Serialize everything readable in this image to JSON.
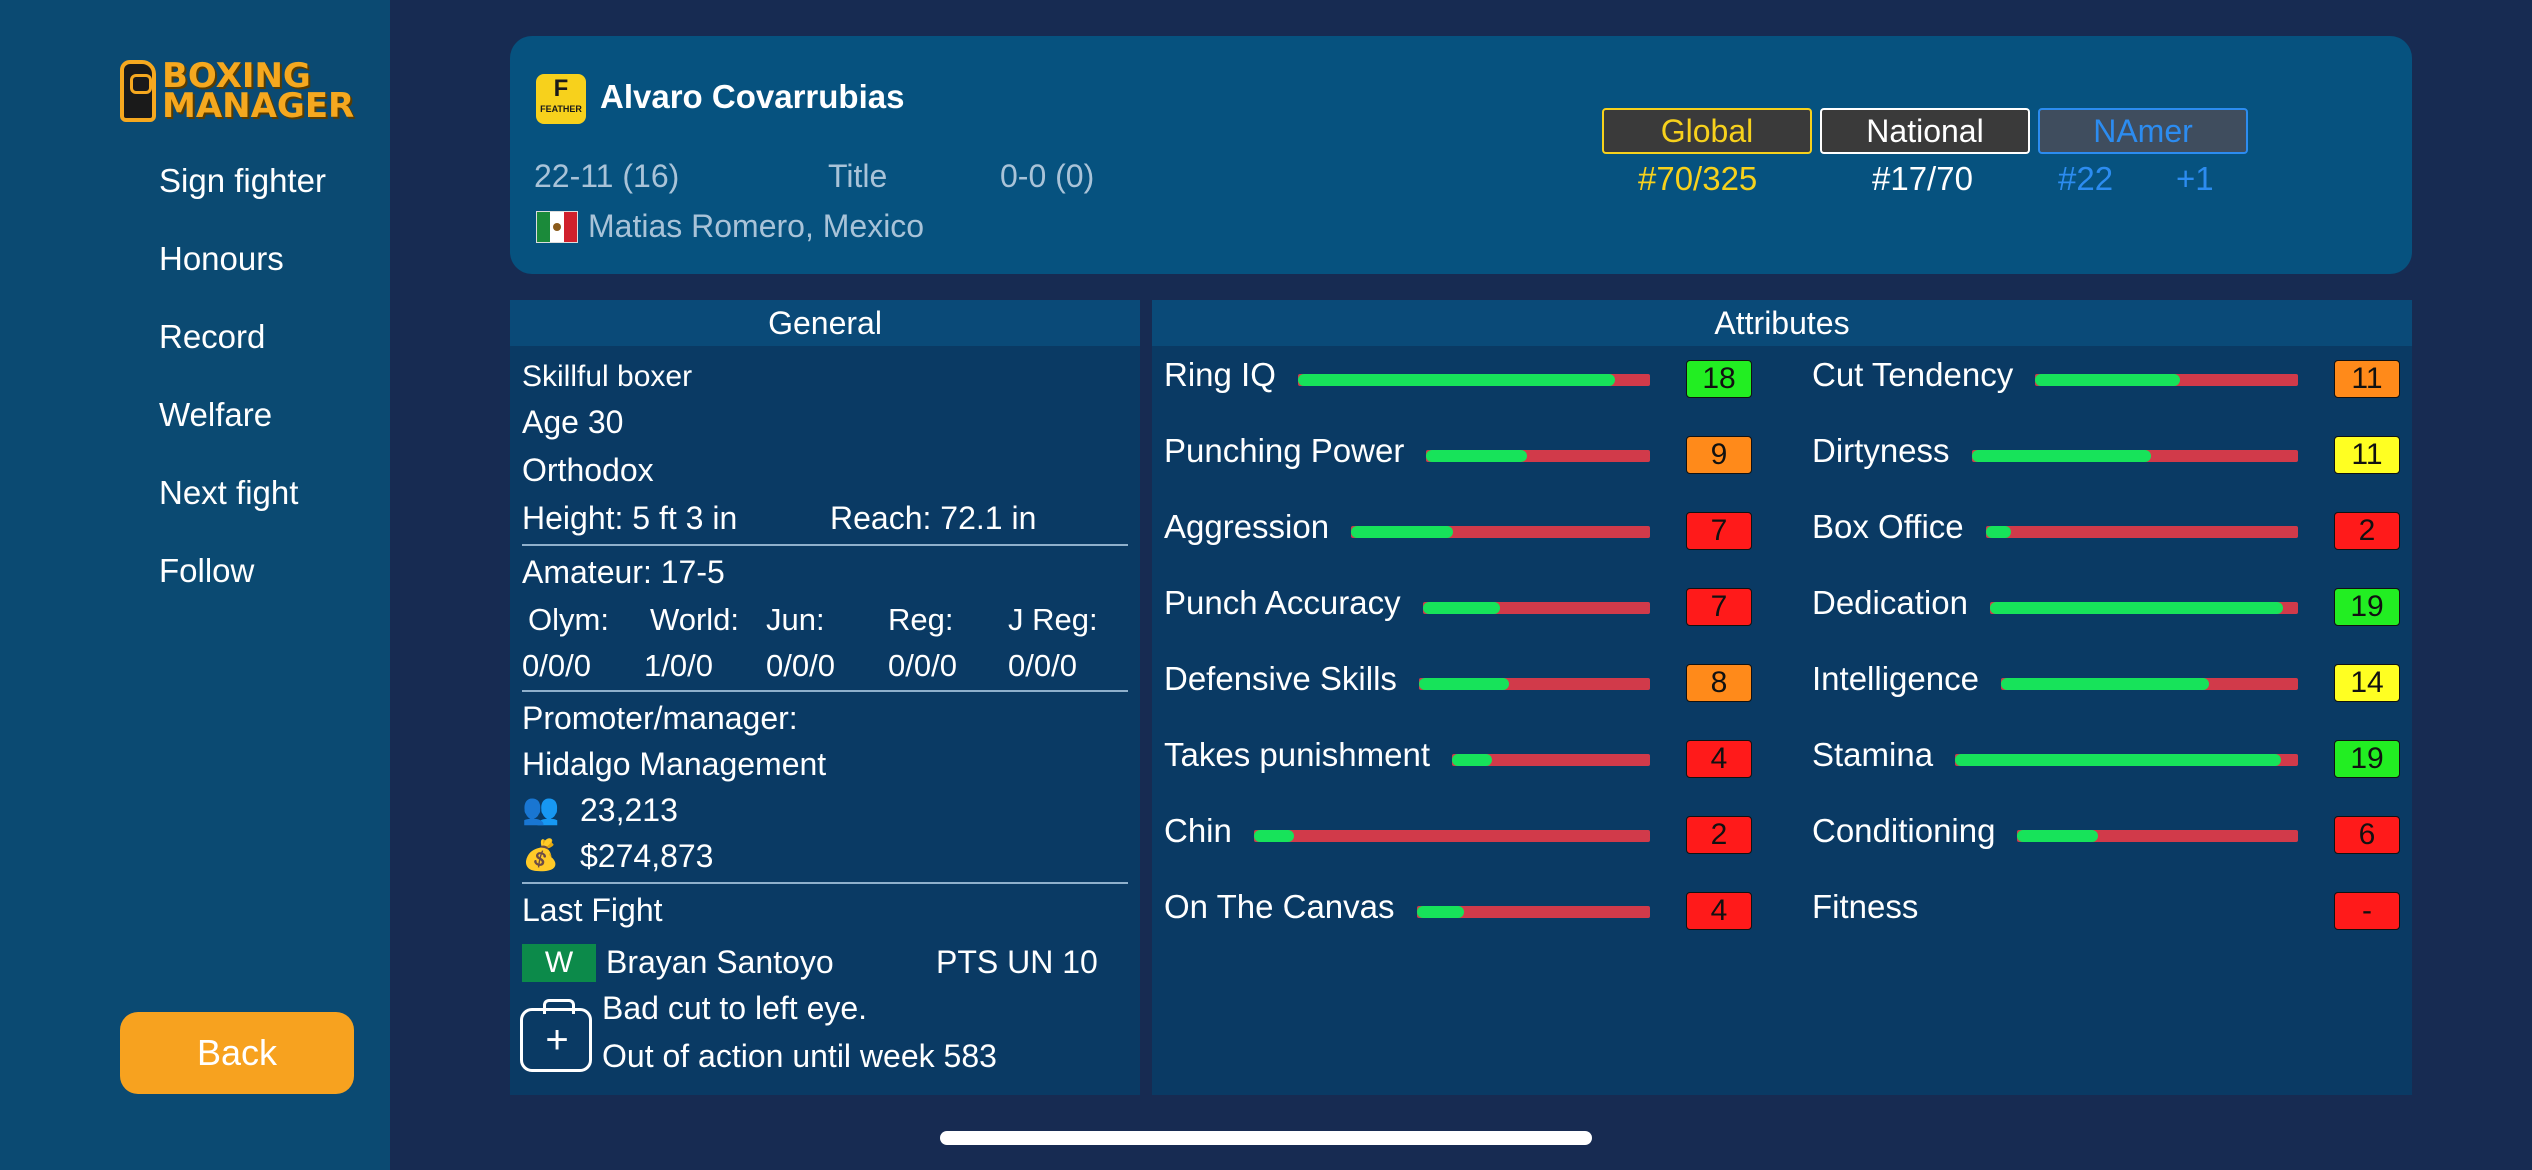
{
  "sidebar": {
    "logo_line1": "BOXING",
    "logo_line2": "MANAGER",
    "items": [
      "Sign fighter",
      "Honours",
      "Record",
      "Welfare",
      "Next fight",
      "Follow"
    ],
    "back_label": "Back"
  },
  "header": {
    "weight_letter": "F",
    "weight_class": "FEATHER",
    "name": "Alvaro Covarrubias",
    "record": "22-11 (16)",
    "title_label": "Title",
    "title_record": "0-0 (0)",
    "trainer_location": "Matias Romero, Mexico",
    "rank_tabs": [
      {
        "label": "Global",
        "color": "#f7d11c"
      },
      {
        "label": "National",
        "color": "#ffffff"
      },
      {
        "label": "NAmer",
        "color": "#2c8cf0"
      }
    ],
    "rank_values": {
      "global": "#70/325",
      "national": "#17/70",
      "namer": "#22",
      "namer_change": "+1"
    }
  },
  "general": {
    "title": "General",
    "style": "Skillful boxer",
    "age": "Age 30",
    "stance": "Orthodox",
    "height": "Height: 5 ft 3 in",
    "reach": "Reach: 72.1 in",
    "amateur": "Amateur: 17-5",
    "amateur_cols": [
      {
        "label": "Olym:",
        "value": "0/0/0"
      },
      {
        "label": "World:",
        "value": "1/0/0"
      },
      {
        "label": "Jun:",
        "value": "0/0/0"
      },
      {
        "label": "Reg:",
        "value": "0/0/0"
      },
      {
        "label": "J Reg:",
        "value": "0/0/0"
      }
    ],
    "promoter_label": "Promoter/manager:",
    "promoter": "Hidalgo Management",
    "fans": "23,213",
    "money": "$274,873",
    "last_fight_label": "Last Fight",
    "last_fight_result": "W",
    "last_fight_opponent": "Brayan Santoyo",
    "last_fight_method": "PTS UN 10",
    "injury_line1": "Bad cut to left eye.",
    "injury_line2": "Out of action until week 583"
  },
  "attributes": {
    "title": "Attributes",
    "left": [
      {
        "name": "Ring IQ",
        "value": "18",
        "fraction": 0.9,
        "color": "#22ee22"
      },
      {
        "name": "Punching Power",
        "value": "9",
        "fraction": 0.45,
        "color": "#ff8a1a"
      },
      {
        "name": "Aggression",
        "value": "7",
        "fraction": 0.34,
        "color": "#ff1a1a"
      },
      {
        "name": "Punch Accuracy",
        "value": "7",
        "fraction": 0.34,
        "color": "#ff1a1a"
      },
      {
        "name": "Defensive Skills",
        "value": "8",
        "fraction": 0.39,
        "color": "#ff8a1a"
      },
      {
        "name": "Takes punishment",
        "value": "4",
        "fraction": 0.2,
        "color": "#ff1a1a"
      },
      {
        "name": "Chin",
        "value": "2",
        "fraction": 0.1,
        "color": "#ff1a1a"
      },
      {
        "name": "On The Canvas",
        "value": "4",
        "fraction": 0.2,
        "color": "#ff1a1a"
      }
    ],
    "right": [
      {
        "name": "Cut Tendency",
        "value": "11",
        "fraction": 0.55,
        "color": "#ff8a1a"
      },
      {
        "name": "Dirtyness",
        "value": "11",
        "fraction": 0.55,
        "color": "#ffff22"
      },
      {
        "name": "Box Office",
        "value": "2",
        "fraction": 0.08,
        "color": "#ff1a1a"
      },
      {
        "name": "Dedication",
        "value": "19",
        "fraction": 0.95,
        "color": "#22ee22"
      },
      {
        "name": "Intelligence",
        "value": "14",
        "fraction": 0.7,
        "color": "#ffff22"
      },
      {
        "name": "Stamina",
        "value": "19",
        "fraction": 0.95,
        "color": "#22ee22"
      },
      {
        "name": "Conditioning",
        "value": "6",
        "fraction": 0.29,
        "color": "#ff1a1a"
      },
      {
        "name": "Fitness",
        "value": "-",
        "fraction": null,
        "color": "#ff1a1a"
      }
    ]
  }
}
